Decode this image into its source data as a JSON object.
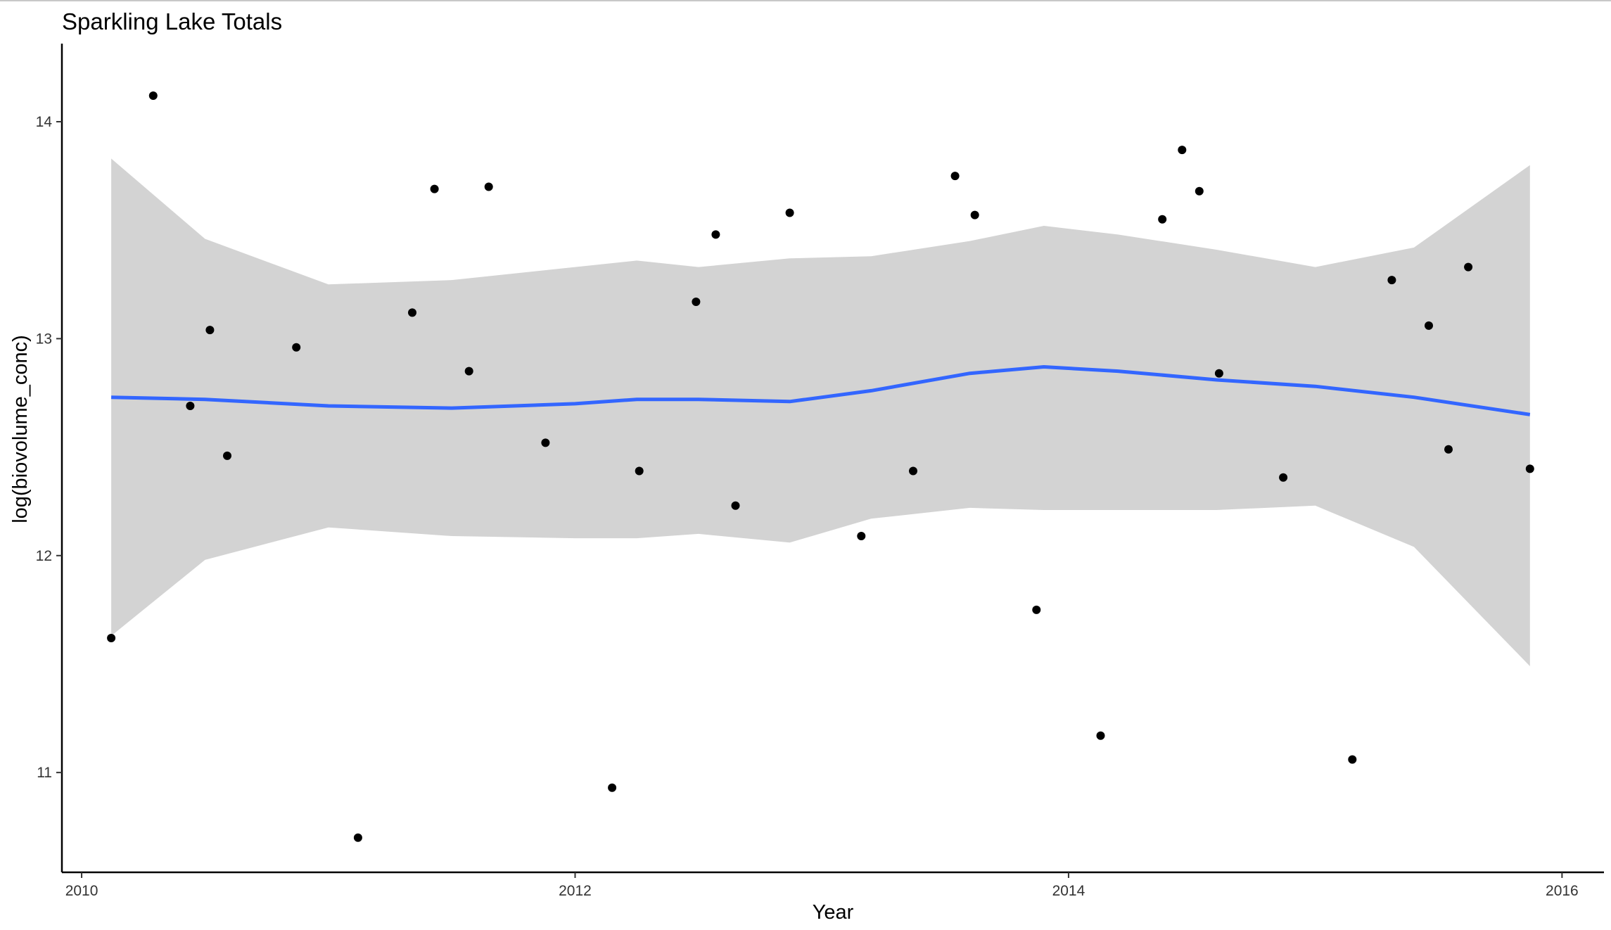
{
  "chart_data": {
    "type": "scatter",
    "title": "Sparkling Lake Totals",
    "xlabel": "Year",
    "ylabel": "log(biovolume_conc)",
    "xlim": [
      2009.92,
      2016.17
    ],
    "ylim": [
      10.54,
      14.36
    ],
    "x_ticks": [
      2010,
      2012,
      2014,
      2016
    ],
    "y_ticks": [
      11,
      12,
      13,
      14
    ],
    "grid": false,
    "legend": "none",
    "colors": {
      "points": "#000000",
      "smooth_line": "#3366ff",
      "ribbon": "#d3d3d3",
      "axis": "#000000"
    },
    "points": [
      {
        "x": 2010.12,
        "y": 11.62
      },
      {
        "x": 2010.29,
        "y": 14.12
      },
      {
        "x": 2010.44,
        "y": 12.69
      },
      {
        "x": 2010.52,
        "y": 13.04
      },
      {
        "x": 2010.59,
        "y": 12.46
      },
      {
        "x": 2010.87,
        "y": 12.96
      },
      {
        "x": 2011.12,
        "y": 10.7
      },
      {
        "x": 2011.34,
        "y": 13.12
      },
      {
        "x": 2011.43,
        "y": 13.69
      },
      {
        "x": 2011.57,
        "y": 12.85
      },
      {
        "x": 2011.65,
        "y": 13.7
      },
      {
        "x": 2011.88,
        "y": 12.52
      },
      {
        "x": 2012.15,
        "y": 10.93
      },
      {
        "x": 2012.26,
        "y": 12.39
      },
      {
        "x": 2012.49,
        "y": 13.17
      },
      {
        "x": 2012.57,
        "y": 13.48
      },
      {
        "x": 2012.65,
        "y": 12.23
      },
      {
        "x": 2012.87,
        "y": 13.58
      },
      {
        "x": 2013.16,
        "y": 12.09
      },
      {
        "x": 2013.37,
        "y": 12.39
      },
      {
        "x": 2013.54,
        "y": 13.75
      },
      {
        "x": 2013.62,
        "y": 13.57
      },
      {
        "x": 2013.87,
        "y": 11.75
      },
      {
        "x": 2014.13,
        "y": 11.17
      },
      {
        "x": 2014.38,
        "y": 13.55
      },
      {
        "x": 2014.46,
        "y": 13.87
      },
      {
        "x": 2014.53,
        "y": 13.68
      },
      {
        "x": 2014.61,
        "y": 12.84
      },
      {
        "x": 2014.87,
        "y": 12.36
      },
      {
        "x": 2015.15,
        "y": 11.06
      },
      {
        "x": 2015.31,
        "y": 13.27
      },
      {
        "x": 2015.46,
        "y": 13.06
      },
      {
        "x": 2015.54,
        "y": 12.49
      },
      {
        "x": 2015.62,
        "y": 13.33
      },
      {
        "x": 2015.87,
        "y": 12.4
      }
    ],
    "smooth": {
      "x": [
        2010.12,
        2010.5,
        2011.0,
        2011.5,
        2012.0,
        2012.25,
        2012.5,
        2012.87,
        2013.2,
        2013.6,
        2013.9,
        2014.2,
        2014.6,
        2015.0,
        2015.4,
        2015.87
      ],
      "y": [
        12.73,
        12.72,
        12.69,
        12.68,
        12.7,
        12.72,
        12.72,
        12.71,
        12.76,
        12.84,
        12.87,
        12.85,
        12.81,
        12.78,
        12.73,
        12.65
      ],
      "lower": [
        11.63,
        11.98,
        12.13,
        12.09,
        12.08,
        12.08,
        12.1,
        12.06,
        12.17,
        12.22,
        12.21,
        12.21,
        12.21,
        12.23,
        12.04,
        11.49
      ],
      "upper": [
        13.83,
        13.46,
        13.25,
        13.27,
        13.33,
        13.36,
        13.33,
        13.37,
        13.38,
        13.45,
        13.52,
        13.48,
        13.41,
        13.33,
        13.42,
        13.8
      ]
    }
  }
}
